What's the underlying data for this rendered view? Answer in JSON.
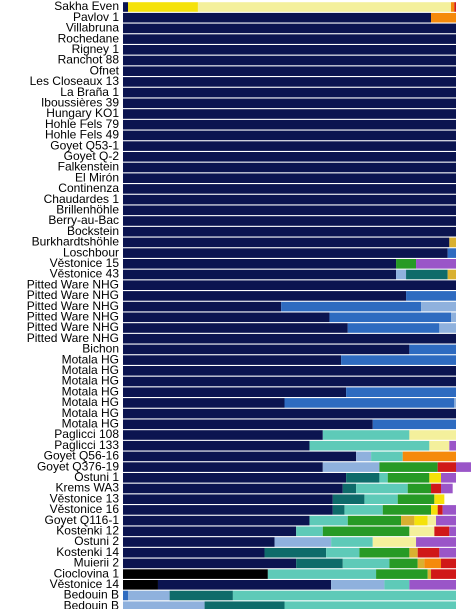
{
  "chart_data": {
    "type": "bar",
    "orientation": "horizontal",
    "stacked": true,
    "categories": [
      "Sakha Even",
      "Pavlov 1",
      "Villabruna",
      "Rochedane",
      "Rigney 1",
      "Ranchot 88",
      "Ofnet",
      "Les Closeaux 13",
      "La Braña 1",
      "Iboussières 39",
      "Hungary KO1",
      "Hohle Fels 79",
      "Hohle Fels 49",
      "Goyet Q53-1",
      "Goyet Q-2",
      "Falkenstein",
      "El Mirón",
      "Continenza",
      "Chaudardes 1",
      "Brillenhöhle",
      "Berry-au-Bac",
      "Bockstein",
      "Burkhardtshöhle",
      "Loschbour",
      "Věstonice 15",
      "Věstonice 43",
      "Pitted Ware NHG",
      "Pitted Ware NHG",
      "Pitted Ware NHG",
      "Pitted Ware NHG",
      "Pitted Ware NHG",
      "Pitted Ware NHG",
      "Bichon",
      "Motala HG",
      "Motala HG",
      "Motala HG",
      "Motala HG",
      "Motala HG",
      "Motala HG",
      "Motala HG",
      "Paglicci 108",
      "Paglicci 133",
      "Goyet Q56-16",
      "Goyet Q376-19",
      "Ostuni 1",
      "Krems WA3",
      "Věstonice 13",
      "Věstonice 16",
      "Goyet Q116-1",
      "Kostenki 12",
      "Ostuni 2",
      "Kostenki 14",
      "Muierii 2",
      "Cioclovina 1",
      "Věstonice 14",
      "Bedouin B",
      "Bedouin B"
    ],
    "xlim": [
      0,
      100
    ],
    "series": [
      {
        "color": "#000000",
        "values": [
          0,
          0,
          0,
          0,
          0,
          0,
          0,
          0,
          0,
          0,
          0,
          0,
          0,
          0,
          0,
          0,
          0,
          0,
          0,
          0,
          0,
          0,
          0,
          0,
          0,
          0,
          0,
          0,
          0,
          0,
          0,
          0,
          0,
          0,
          0,
          0,
          0,
          0,
          0,
          0,
          0,
          0,
          0,
          0,
          0,
          0,
          0,
          0,
          0,
          0,
          0,
          0,
          0,
          43.5,
          10.5,
          0,
          0
        ]
      },
      {
        "color": "#0b1450",
        "values": [
          1.5,
          92.5,
          100,
          100,
          100,
          100,
          100,
          100,
          100,
          100,
          100,
          100,
          100,
          100,
          100,
          100,
          100,
          100,
          100,
          100,
          100,
          100,
          98,
          97.5,
          82,
          82,
          100,
          85,
          47.5,
          62,
          67.5,
          100,
          86,
          65.5,
          100,
          100,
          67,
          48.5,
          100,
          75,
          60,
          56,
          70,
          60,
          67,
          66,
          63,
          63,
          56,
          52,
          45.5,
          42.5,
          52,
          0,
          52,
          0,
          0
        ]
      },
      {
        "color": "#2e6bc0",
        "values": [
          0,
          0,
          0,
          0,
          0,
          0,
          0,
          0,
          0,
          0,
          0,
          0,
          0,
          0,
          0,
          0,
          0,
          0,
          0,
          0,
          0,
          0,
          0,
          2.5,
          0,
          0,
          0,
          15,
          42,
          36.5,
          27.5,
          0,
          14,
          34.5,
          0,
          0,
          33,
          51,
          0,
          25,
          0,
          0,
          0,
          0,
          0,
          0,
          0,
          0,
          0,
          0,
          0,
          0,
          0,
          0,
          0,
          1.5,
          0
        ]
      },
      {
        "color": "#8fb1dd",
        "values": [
          0,
          0,
          0,
          0,
          0,
          0,
          0,
          0,
          0,
          0,
          0,
          0,
          0,
          0,
          0,
          0,
          0,
          0,
          0,
          0,
          0,
          0,
          0,
          0,
          0,
          3,
          0,
          0,
          10.5,
          1.5,
          5,
          0,
          0,
          0,
          0,
          0,
          0,
          0.5,
          0,
          0,
          0,
          0,
          4.5,
          17,
          0,
          0,
          0,
          0,
          0,
          0,
          17,
          0,
          0,
          0,
          16,
          12.5,
          24.5
        ]
      },
      {
        "color": "#0e6b6a",
        "values": [
          0,
          0,
          0,
          0,
          0,
          0,
          0,
          0,
          0,
          0,
          0,
          0,
          0,
          0,
          0,
          0,
          0,
          0,
          0,
          0,
          0,
          0,
          0,
          0,
          0,
          12.5,
          0,
          0,
          0,
          0,
          0,
          0,
          0,
          0,
          0,
          0,
          0,
          0,
          0,
          0,
          0,
          0,
          0,
          0,
          10,
          4,
          9.5,
          3.5,
          0,
          0,
          0,
          18.5,
          14,
          0,
          0,
          19,
          24
        ]
      },
      {
        "color": "#5ecab8",
        "values": [
          0,
          0,
          0,
          0,
          0,
          0,
          0,
          0,
          0,
          0,
          0,
          0,
          0,
          0,
          0,
          0,
          0,
          0,
          0,
          0,
          0,
          0,
          0,
          0,
          0,
          0,
          0,
          0,
          0,
          0,
          0,
          0,
          0,
          0,
          0,
          0,
          0,
          0,
          0,
          0,
          26,
          36,
          9.5,
          0,
          2.5,
          15.5,
          10,
          11.5,
          11.5,
          8,
          12.5,
          10,
          14,
          32.5,
          7.5,
          67,
          51.5
        ]
      },
      {
        "color": "#279a25",
        "values": [
          0,
          0,
          0,
          0,
          0,
          0,
          0,
          0,
          0,
          0,
          0,
          0,
          0,
          0,
          0,
          0,
          0,
          0,
          0,
          0,
          0,
          0,
          0,
          0,
          6,
          0,
          0,
          0,
          0,
          0,
          0,
          0,
          0,
          0,
          0,
          0,
          0,
          0,
          0,
          0,
          0,
          0,
          0,
          17.5,
          12.5,
          7,
          11,
          14.5,
          16,
          26,
          0,
          15,
          8.5,
          15.5,
          0,
          0,
          0
        ]
      },
      {
        "color": "#d9b030",
        "values": [
          0,
          0,
          0,
          0,
          0,
          0,
          0,
          0,
          0,
          0,
          0,
          0,
          0,
          0,
          0,
          0,
          0,
          0,
          0,
          0,
          0,
          0,
          2,
          0,
          0,
          2.5,
          0,
          0,
          0,
          0,
          0,
          0,
          0,
          0,
          0,
          0,
          0,
          0,
          0,
          0,
          0,
          0,
          0,
          0,
          0,
          0,
          0,
          0,
          4,
          0,
          0,
          2.5,
          2,
          1,
          0,
          0,
          0
        ]
      },
      {
        "color": "#f5e20a",
        "values": [
          21,
          0,
          0,
          0,
          0,
          0,
          0,
          0,
          0,
          0,
          0,
          0,
          0,
          0,
          0,
          0,
          0,
          0,
          0,
          0,
          0,
          0,
          0,
          0,
          0,
          0,
          0,
          0,
          0,
          0,
          0,
          0,
          0,
          0,
          0,
          0,
          0,
          0,
          0,
          0,
          0,
          0,
          0,
          0,
          3.5,
          0,
          3,
          2,
          4,
          0,
          0,
          0,
          0,
          0,
          0,
          0,
          0
        ]
      },
      {
        "color": "#f4f09c",
        "values": [
          76,
          0,
          0,
          0,
          0,
          0,
          0,
          0,
          0,
          0,
          0,
          0,
          0,
          0,
          0,
          0,
          0,
          0,
          0,
          0,
          0,
          0,
          0,
          0,
          0,
          0,
          0,
          0,
          0,
          0,
          0,
          0,
          0,
          0,
          0,
          0,
          0,
          0,
          0,
          0,
          14,
          6,
          0,
          0,
          0,
          0,
          0,
          0,
          2.5,
          7.5,
          13,
          0,
          0,
          0,
          0,
          0,
          0
        ]
      },
      {
        "color": "#f58a0b",
        "values": [
          1,
          7.5,
          0,
          0,
          0,
          0,
          0,
          0,
          0,
          0,
          0,
          0,
          0,
          0,
          0,
          0,
          0,
          0,
          0,
          0,
          0,
          0,
          0,
          0,
          0,
          0,
          0,
          0,
          0,
          0,
          0,
          0,
          0,
          0,
          0,
          0,
          0,
          0,
          0,
          0,
          0,
          0,
          16,
          0,
          0,
          0,
          0,
          0,
          0,
          0,
          0,
          0,
          5,
          0,
          0,
          0,
          0
        ]
      },
      {
        "color": "#d01818",
        "values": [
          0.5,
          0,
          0,
          0,
          0,
          0,
          0,
          0,
          0,
          0,
          0,
          0,
          0,
          0,
          0,
          0,
          0,
          0,
          0,
          0,
          0,
          0,
          0,
          0,
          0,
          0,
          0,
          0,
          0,
          0,
          0,
          0,
          0,
          0,
          0,
          0,
          0,
          0,
          0,
          0,
          0,
          0,
          0,
          5.5,
          0,
          3,
          0,
          1.5,
          0,
          4.5,
          0,
          6.5,
          4.5,
          7.5,
          0,
          0,
          0
        ]
      },
      {
        "color": "#9a55c8",
        "values": [
          0,
          0,
          0,
          0,
          0,
          0,
          0,
          0,
          0,
          0,
          0,
          0,
          0,
          0,
          0,
          0,
          0,
          0,
          0,
          0,
          0,
          0,
          0,
          0,
          12,
          0,
          0,
          0,
          0,
          0,
          0,
          0,
          0,
          0,
          0,
          0,
          0,
          0,
          0,
          0,
          0,
          2,
          0,
          4.5,
          4.5,
          3.5,
          0,
          4,
          6,
          2,
          12,
          5,
          0,
          0,
          14,
          0,
          0
        ]
      }
    ]
  }
}
